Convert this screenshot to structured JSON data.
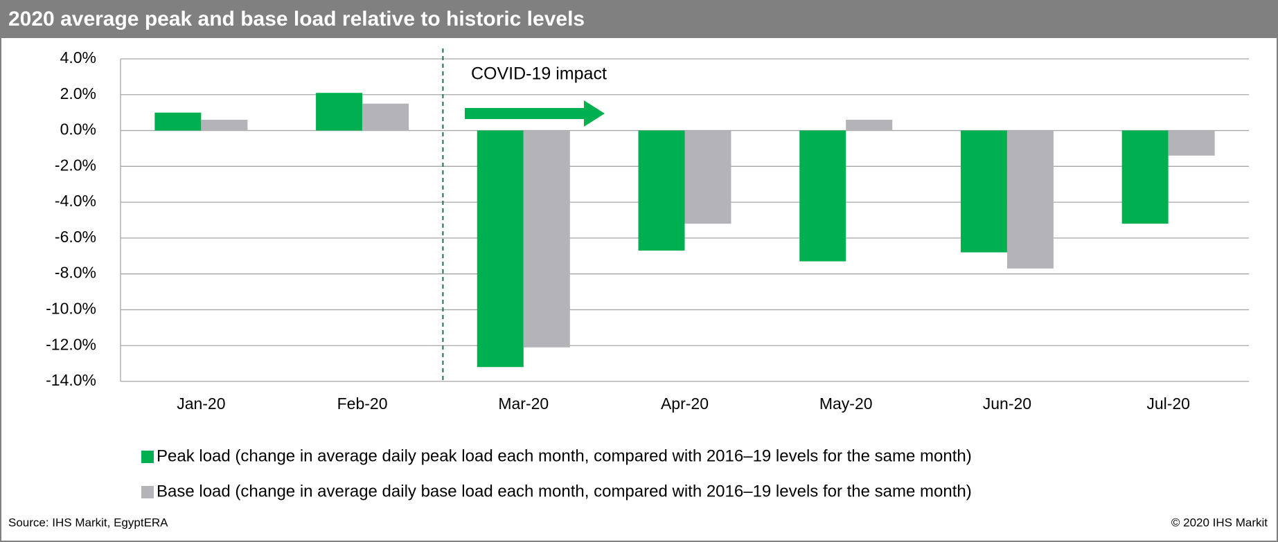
{
  "chart_data": {
    "type": "bar",
    "title": "2020 average peak and base load relative to historic levels",
    "annotation": "COVID-19 impact",
    "source": "Source: IHS Markit, EgyptERA",
    "copyright": "© 2020 IHS Markit",
    "categories": [
      "Jan-20",
      "Feb-20",
      "Mar-20",
      "Apr-20",
      "May-20",
      "Jun-20",
      "Jul-20"
    ],
    "series": [
      {
        "name": "Peak load (change in average daily peak load each month, compared with 2016–19 levels for the same month)",
        "color": "#00b050",
        "values": [
          1.0,
          2.1,
          -13.2,
          -6.7,
          -7.3,
          -6.8,
          -5.2
        ]
      },
      {
        "name": "Base load (change in average daily base load each month, compared with 2016–19 levels for the same month)",
        "color": "#b4b4b8",
        "values": [
          0.6,
          1.5,
          -12.1,
          -5.2,
          0.6,
          -7.7,
          -1.4
        ]
      }
    ],
    "ylim": [
      -14,
      4
    ],
    "yticks": [
      {
        "value": 4,
        "label": "4.0%"
      },
      {
        "value": 2,
        "label": "2.0%"
      },
      {
        "value": 0,
        "label": "0.0%"
      },
      {
        "value": -2,
        "label": "-2.0%"
      },
      {
        "value": -4,
        "label": "-4.0%"
      },
      {
        "value": -6,
        "label": "-6.0%"
      },
      {
        "value": -8,
        "label": "-8.0%"
      },
      {
        "value": -10,
        "label": "-10.0%"
      },
      {
        "value": -12,
        "label": "-12.0%"
      },
      {
        "value": -14,
        "label": "-14.0%"
      }
    ],
    "grid": true
  }
}
